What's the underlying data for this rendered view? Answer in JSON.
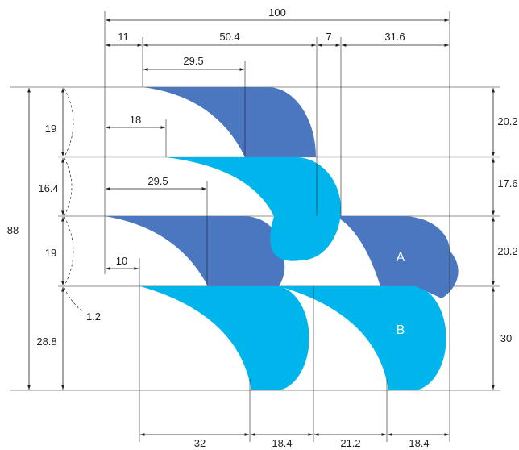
{
  "colors": {
    "dark_blue": "#4a77bf",
    "light_blue": "#00b5ec",
    "line": "#231f20",
    "label_text": "#ffffff"
  },
  "top_dimensions": {
    "total": "100",
    "d1": "11",
    "d2": "50.4",
    "d3": "7",
    "d4": "31.6",
    "offset_row1": "29.5",
    "offset_row2": "18",
    "offset_row3": "29.5",
    "offset_row4": "10"
  },
  "left_dimensions": {
    "total": "88",
    "h1": "19",
    "h2": "16.4",
    "h3": "19",
    "h4": "28.8",
    "gap": "1.2"
  },
  "right_dimensions": {
    "h1": "20.2",
    "h2": "17.6",
    "h3": "20.2",
    "h4": "30"
  },
  "bottom_dimensions": {
    "w1": "32",
    "w2": "18.4",
    "w3": "21.2",
    "w4": "18.4"
  },
  "shape_labels": {
    "a": "A",
    "b": "B"
  }
}
